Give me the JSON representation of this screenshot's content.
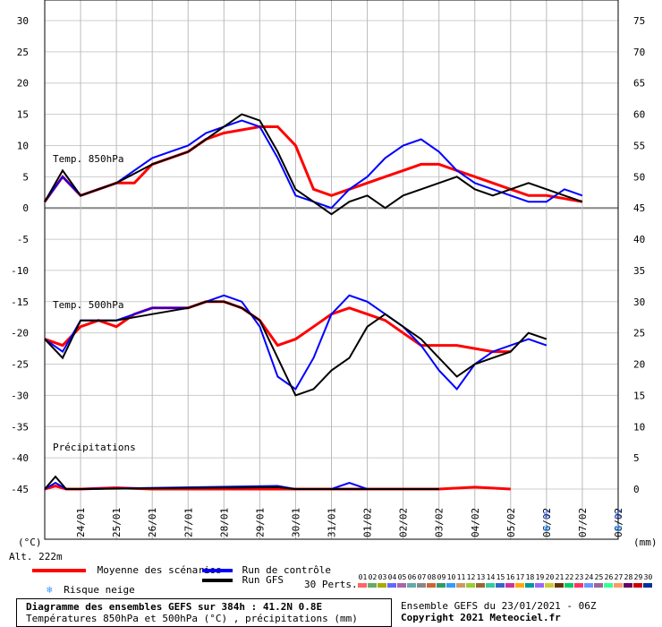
{
  "chart_data": {
    "type": "line",
    "title": "Diagramme des ensembles GEFS sur 384h : 41.2N 0.8E",
    "subtitle": "Températures 850hPa et 500hPa (°C) , précipitations (mm)",
    "altitude_label": "Alt. 222m",
    "left_unit": "(°C)",
    "right_unit": "(mm)",
    "left_ticks": [
      30,
      25,
      20,
      15,
      10,
      5,
      0,
      -5,
      -10,
      -15,
      -20,
      -25,
      -30,
      -35,
      -40,
      -45
    ],
    "right_ticks": [
      75,
      70,
      65,
      60,
      55,
      50,
      45,
      40,
      35,
      30,
      25,
      20,
      15,
      10,
      5,
      0
    ],
    "ylim": [
      -45,
      30
    ],
    "right_ylim": [
      0,
      75
    ],
    "x_labels": [
      "24/01",
      "25/01",
      "26/01",
      "27/01",
      "28/01",
      "29/01",
      "30/01",
      "31/01",
      "01/02",
      "02/02",
      "03/02",
      "04/02",
      "05/02",
      "06/02",
      "07/02",
      "08/02"
    ],
    "panel_labels": {
      "t850": "Temp. 850hPa",
      "t500": "Temp. 500hPa",
      "precip": "Précipitations"
    },
    "snow_risk": [
      {
        "date": "06/02",
        "percent": "6%"
      },
      {
        "date": "08/02",
        "percent": "5%"
      }
    ],
    "series": [
      {
        "name": "Moyenne des scénarios",
        "color": "#ff0000",
        "t850": [
          [
            23.0,
            1
          ],
          [
            23.5,
            5
          ],
          [
            24.0,
            2
          ],
          [
            24.5,
            3
          ],
          [
            25.0,
            4
          ],
          [
            25.5,
            4
          ],
          [
            26.0,
            7
          ],
          [
            26.5,
            8
          ],
          [
            27.0,
            9
          ],
          [
            27.5,
            11
          ],
          [
            28.0,
            12
          ],
          [
            28.5,
            12.5
          ],
          [
            29.0,
            13
          ],
          [
            29.5,
            13
          ],
          [
            30.0,
            10
          ],
          [
            30.5,
            3
          ],
          [
            31.0,
            2
          ],
          [
            31.5,
            3
          ],
          [
            32.0,
            4
          ],
          [
            32.5,
            5
          ],
          [
            33.0,
            6
          ],
          [
            33.5,
            7
          ],
          [
            34.0,
            7
          ],
          [
            34.5,
            6
          ],
          [
            35.0,
            5
          ],
          [
            35.5,
            4
          ],
          [
            36.0,
            3
          ],
          [
            36.5,
            2
          ],
          [
            37.0,
            2
          ],
          [
            37.5,
            1.5
          ],
          [
            38.0,
            1
          ]
        ],
        "t500": [
          [
            23.0,
            -21
          ],
          [
            23.5,
            -22
          ],
          [
            24.0,
            -19
          ],
          [
            24.5,
            -18
          ],
          [
            25.0,
            -19
          ],
          [
            25.5,
            -17
          ],
          [
            26.0,
            -16
          ],
          [
            26.5,
            -16
          ],
          [
            27.0,
            -16
          ],
          [
            27.5,
            -15
          ],
          [
            28.0,
            -15
          ],
          [
            28.5,
            -16
          ],
          [
            29.0,
            -18
          ],
          [
            29.5,
            -22
          ],
          [
            30.0,
            -21
          ],
          [
            30.5,
            -19
          ],
          [
            31.0,
            -17
          ],
          [
            31.5,
            -16
          ],
          [
            32.0,
            -17
          ],
          [
            32.5,
            -18
          ],
          [
            33.0,
            -20
          ],
          [
            33.5,
            -22
          ],
          [
            34.0,
            -22
          ],
          [
            34.5,
            -22
          ],
          [
            35.0,
            -22.5
          ],
          [
            35.5,
            -23
          ],
          [
            36.0,
            -23
          ]
        ],
        "precip": [
          [
            23.0,
            0
          ],
          [
            23.3,
            0.5
          ],
          [
            23.6,
            0
          ],
          [
            24.0,
            0
          ],
          [
            25.0,
            0.2
          ],
          [
            26.0,
            0
          ],
          [
            30.0,
            0
          ],
          [
            32.0,
            0
          ],
          [
            34.0,
            0
          ],
          [
            35.0,
            0.3
          ],
          [
            36.0,
            0
          ]
        ]
      },
      {
        "name": "Run de contrôle",
        "color": "#0000ff",
        "t850": [
          [
            23.0,
            1
          ],
          [
            23.5,
            5
          ],
          [
            24.0,
            2
          ],
          [
            25.0,
            4
          ],
          [
            26.0,
            8
          ],
          [
            27.0,
            10
          ],
          [
            27.5,
            12
          ],
          [
            28.0,
            13
          ],
          [
            28.5,
            14
          ],
          [
            29.0,
            13
          ],
          [
            29.5,
            8
          ],
          [
            30.0,
            2
          ],
          [
            30.5,
            1
          ],
          [
            31.0,
            0
          ],
          [
            31.5,
            3
          ],
          [
            32.0,
            5
          ],
          [
            32.5,
            8
          ],
          [
            33.0,
            10
          ],
          [
            33.5,
            11
          ],
          [
            34.0,
            9
          ],
          [
            34.5,
            6
          ],
          [
            35.0,
            4
          ],
          [
            35.5,
            3
          ],
          [
            36.0,
            2
          ],
          [
            36.5,
            1
          ],
          [
            37.0,
            1
          ],
          [
            37.5,
            3
          ],
          [
            38.0,
            2
          ]
        ],
        "t500": [
          [
            23.0,
            -21
          ],
          [
            23.5,
            -23
          ],
          [
            24.0,
            -18
          ],
          [
            25.0,
            -18
          ],
          [
            26.0,
            -16
          ],
          [
            27.0,
            -16
          ],
          [
            27.5,
            -15
          ],
          [
            28.0,
            -14
          ],
          [
            28.5,
            -15
          ],
          [
            29.0,
            -19
          ],
          [
            29.5,
            -27
          ],
          [
            30.0,
            -29
          ],
          [
            30.5,
            -24
          ],
          [
            31.0,
            -17
          ],
          [
            31.5,
            -14
          ],
          [
            32.0,
            -15
          ],
          [
            32.5,
            -17
          ],
          [
            33.0,
            -19
          ],
          [
            33.5,
            -22
          ],
          [
            34.0,
            -26
          ],
          [
            34.5,
            -29
          ],
          [
            35.0,
            -25
          ],
          [
            35.5,
            -23
          ],
          [
            36.0,
            -22
          ],
          [
            36.5,
            -21
          ],
          [
            37.0,
            -22
          ]
        ],
        "precip": [
          [
            23.0,
            0
          ],
          [
            23.3,
            1
          ],
          [
            23.6,
            0
          ],
          [
            24.0,
            0
          ],
          [
            29.5,
            0.5
          ],
          [
            30.0,
            0
          ],
          [
            31.0,
            0
          ],
          [
            31.5,
            1
          ],
          [
            32.0,
            0
          ],
          [
            34.0,
            0
          ]
        ]
      },
      {
        "name": "Run GFS",
        "color": "#000000",
        "t850": [
          [
            23.0,
            1
          ],
          [
            23.5,
            6
          ],
          [
            24.0,
            2
          ],
          [
            25.0,
            4
          ],
          [
            26.0,
            7
          ],
          [
            27.0,
            9
          ],
          [
            27.5,
            11
          ],
          [
            28.0,
            13
          ],
          [
            28.5,
            15
          ],
          [
            29.0,
            14
          ],
          [
            29.5,
            9
          ],
          [
            30.0,
            3
          ],
          [
            30.5,
            1
          ],
          [
            31.0,
            -1
          ],
          [
            31.5,
            1
          ],
          [
            32.0,
            2
          ],
          [
            32.5,
            0
          ],
          [
            33.0,
            2
          ],
          [
            33.5,
            3
          ],
          [
            34.0,
            4
          ],
          [
            34.5,
            5
          ],
          [
            35.0,
            3
          ],
          [
            35.5,
            2
          ],
          [
            36.0,
            3
          ],
          [
            36.5,
            4
          ],
          [
            37.0,
            3
          ],
          [
            37.5,
            2
          ],
          [
            38.0,
            1
          ]
        ],
        "t500": [
          [
            23.0,
            -21
          ],
          [
            23.5,
            -24
          ],
          [
            24.0,
            -18
          ],
          [
            25.0,
            -18
          ],
          [
            26.0,
            -17
          ],
          [
            27.0,
            -16
          ],
          [
            27.5,
            -15
          ],
          [
            28.0,
            -15
          ],
          [
            28.5,
            -16
          ],
          [
            29.0,
            -18
          ],
          [
            29.5,
            -24
          ],
          [
            30.0,
            -30
          ],
          [
            30.5,
            -29
          ],
          [
            31.0,
            -26
          ],
          [
            31.5,
            -24
          ],
          [
            32.0,
            -19
          ],
          [
            32.5,
            -17
          ],
          [
            33.0,
            -19
          ],
          [
            33.5,
            -21
          ],
          [
            34.0,
            -24
          ],
          [
            34.5,
            -27
          ],
          [
            35.0,
            -25
          ],
          [
            35.5,
            -24
          ],
          [
            36.0,
            -23
          ],
          [
            36.5,
            -20
          ],
          [
            37.0,
            -21
          ]
        ],
        "precip": [
          [
            23.0,
            0
          ],
          [
            23.3,
            2
          ],
          [
            23.6,
            0
          ],
          [
            24.0,
            0
          ],
          [
            29.5,
            0.3
          ],
          [
            30.0,
            0
          ],
          [
            34.0,
            0
          ]
        ]
      }
    ]
  },
  "legend": {
    "mean_label": "Moyenne des scénarios",
    "control_label": "Run de contrôle",
    "gfs_label": "Run GFS",
    "perts_label": "30 Perts.",
    "snow_label": "Risque neige",
    "pert_numbers": [
      "01",
      "02",
      "03",
      "04",
      "05",
      "06",
      "07",
      "08",
      "09",
      "10",
      "11",
      "12",
      "13",
      "14",
      "15",
      "16",
      "17",
      "18",
      "19",
      "20",
      "21",
      "22",
      "23",
      "24",
      "25",
      "26",
      "27",
      "28",
      "29",
      "30"
    ],
    "pert_colors": [
      "#ff6666",
      "#66aa66",
      "#aaaa00",
      "#6666ff",
      "#aa66aa",
      "#66aaaa",
      "#888888",
      "#cc6633",
      "#339966",
      "#3399ff",
      "#cc9966",
      "#99cc33",
      "#996633",
      "#33cc99",
      "#3366cc",
      "#cc3399",
      "#ffaa00",
      "#009999",
      "#9966ff",
      "#cccc33",
      "#663300",
      "#00cc66",
      "#ff3366",
      "#6699ff",
      "#996699",
      "#33ff99",
      "#ff9966",
      "#660066",
      "#cc0000",
      "#003399"
    ]
  },
  "footer": {
    "run_info": "Ensemble GEFS du 23/01/2021 - 06Z",
    "copyright": "Copyright 2021 Meteociel.fr"
  }
}
